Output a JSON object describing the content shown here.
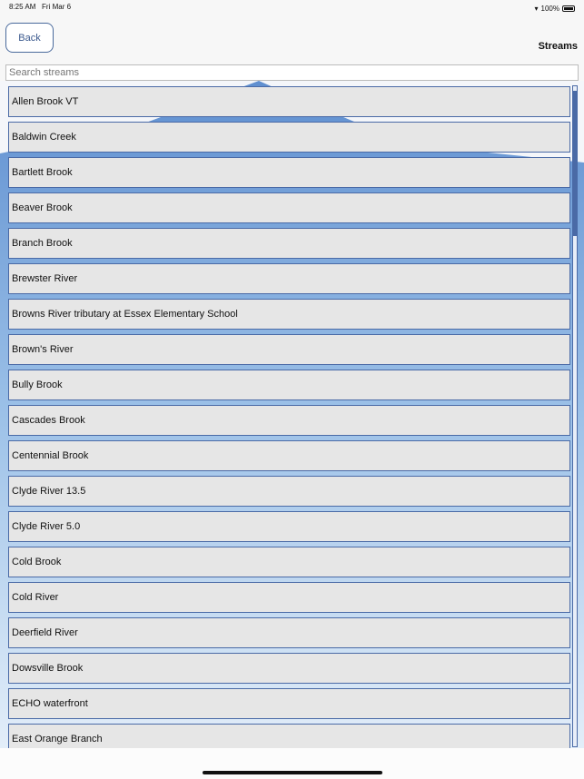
{
  "status_bar": {
    "time": "8:25 AM",
    "date": "Fri Mar 6",
    "battery": "100%"
  },
  "header": {
    "back_label": "Back",
    "title": "Streams"
  },
  "search": {
    "placeholder": "Search streams",
    "value": ""
  },
  "streams": [
    "Allen Brook VT",
    "Baldwin Creek",
    "Bartlett Brook",
    "Beaver Brook",
    "Branch Brook",
    "Brewster River",
    "Browns River tributary at Essex Elementary School",
    "Brown's River",
    "Bully Brook",
    "Cascades Brook",
    "Centennial Brook",
    "Clyde River 13.5",
    "Clyde River 5.0",
    "Cold Brook",
    "Cold River",
    "Deerfield River",
    "Dowsville Brook",
    "ECHO waterfront",
    "East Orange Branch"
  ],
  "colors": {
    "accent": "#4a6aa6",
    "row_bg": "#e6e6e6"
  }
}
